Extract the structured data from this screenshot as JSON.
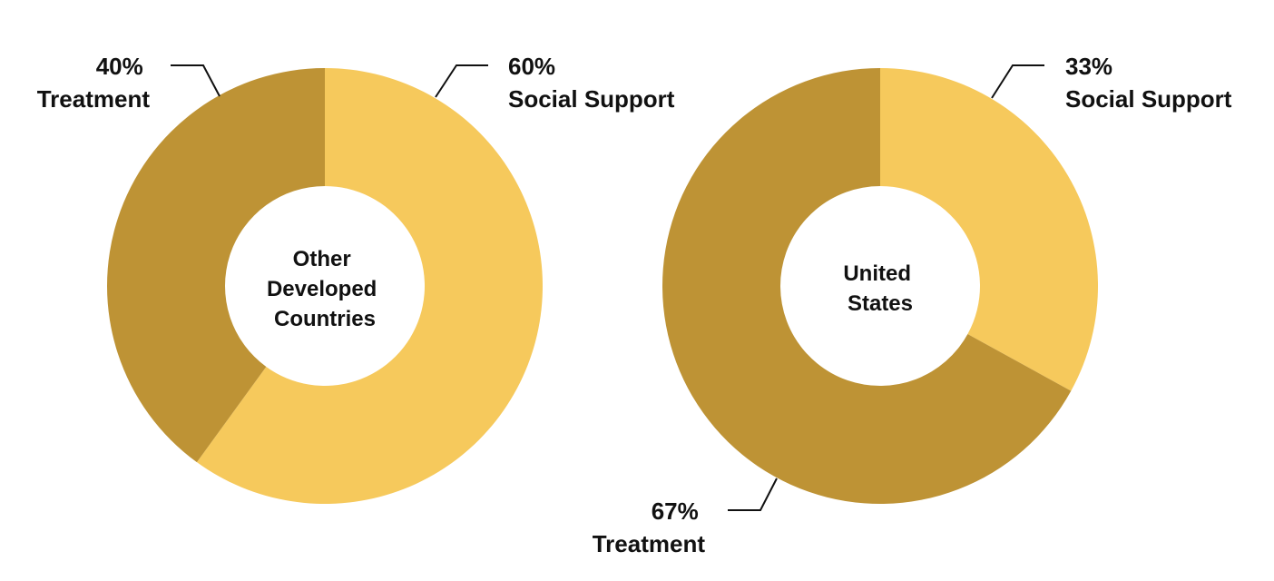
{
  "chart_data": [
    {
      "type": "pie",
      "title": "",
      "center_label": [
        "Other",
        "Developed",
        "Countries"
      ],
      "slices": [
        {
          "name": "Social Support",
          "value": 60,
          "label_value": "60%",
          "color": "#F6C95C"
        },
        {
          "name": "Treatment",
          "value": 40,
          "label_value": "40%",
          "color": "#BE9335"
        }
      ]
    },
    {
      "type": "pie",
      "title": "",
      "center_label": [
        "United",
        "States"
      ],
      "slices": [
        {
          "name": "Social Support",
          "value": 33,
          "label_value": "33%",
          "color": "#F6C95C"
        },
        {
          "name": "Treatment",
          "value": 67,
          "label_value": "67%",
          "color": "#BE9335"
        }
      ]
    }
  ]
}
